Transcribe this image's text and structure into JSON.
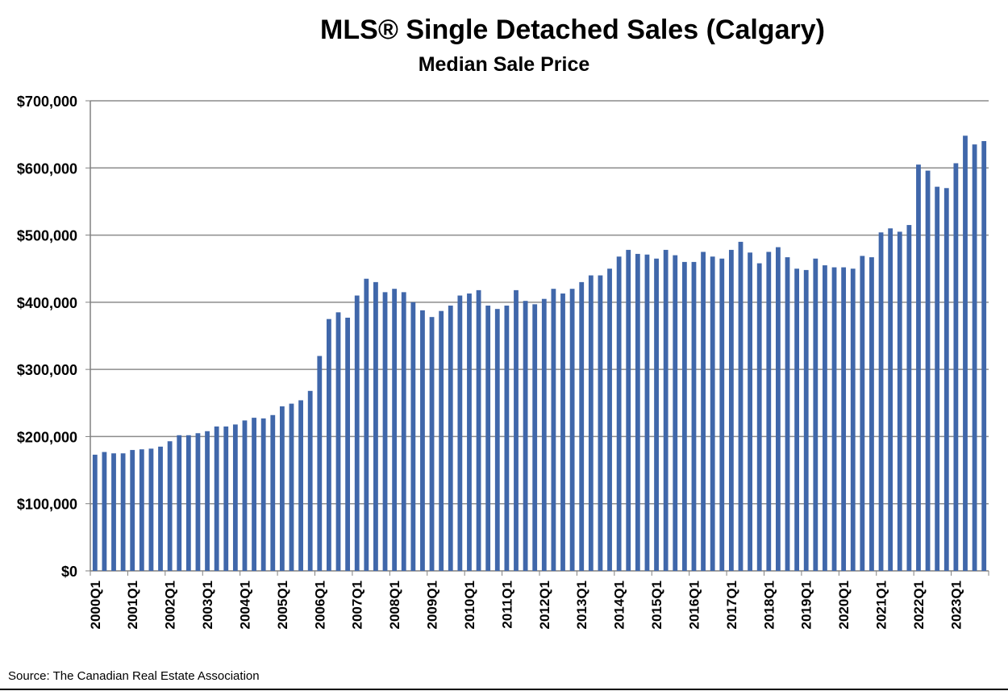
{
  "chart_data": {
    "type": "bar",
    "title": "MLS® Single Detached Sales  (Calgary)",
    "subtitle": "Median Sale Price",
    "xlabel": "",
    "ylabel": "",
    "ylim": [
      0,
      700000
    ],
    "y_ticks": [
      0,
      100000,
      200000,
      300000,
      400000,
      500000,
      600000,
      700000
    ],
    "y_tick_labels": [
      "$0",
      "$100,000",
      "$200,000",
      "$300,000",
      "$400,000",
      "$500,000",
      "$600,000",
      "$700,000"
    ],
    "grid": true,
    "bar_color": "#4067AA",
    "x_tick_labels": [
      "2000Q1",
      "2001Q1",
      "2002Q1",
      "2003Q1",
      "2004Q1",
      "2005Q1",
      "2006Q1",
      "2007Q1",
      "2008Q1",
      "2009Q1",
      "2010Q1",
      "2011Q1",
      "2012Q1",
      "2013Q1",
      "2014Q1",
      "2015Q1",
      "2016Q1",
      "2017Q1",
      "2018Q1",
      "2019Q1",
      "2020Q1",
      "2021Q1",
      "2022Q1",
      "2023Q1"
    ],
    "categories": [
      "2000Q1",
      "2000Q2",
      "2000Q3",
      "2000Q4",
      "2001Q1",
      "2001Q2",
      "2001Q3",
      "2001Q4",
      "2002Q1",
      "2002Q2",
      "2002Q3",
      "2002Q4",
      "2003Q1",
      "2003Q2",
      "2003Q3",
      "2003Q4",
      "2004Q1",
      "2004Q2",
      "2004Q3",
      "2004Q4",
      "2005Q1",
      "2005Q2",
      "2005Q3",
      "2005Q4",
      "2006Q1",
      "2006Q2",
      "2006Q3",
      "2006Q4",
      "2007Q1",
      "2007Q2",
      "2007Q3",
      "2007Q4",
      "2008Q1",
      "2008Q2",
      "2008Q3",
      "2008Q4",
      "2009Q1",
      "2009Q2",
      "2009Q3",
      "2009Q4",
      "2010Q1",
      "2010Q2",
      "2010Q3",
      "2010Q4",
      "2011Q1",
      "2011Q2",
      "2011Q3",
      "2011Q4",
      "2012Q1",
      "2012Q2",
      "2012Q3",
      "2012Q4",
      "2013Q1",
      "2013Q2",
      "2013Q3",
      "2013Q4",
      "2014Q1",
      "2014Q2",
      "2014Q3",
      "2014Q4",
      "2015Q1",
      "2015Q2",
      "2015Q3",
      "2015Q4",
      "2016Q1",
      "2016Q2",
      "2016Q3",
      "2016Q4",
      "2017Q1",
      "2017Q2",
      "2017Q3",
      "2017Q4",
      "2018Q1",
      "2018Q2",
      "2018Q3",
      "2018Q4",
      "2019Q1",
      "2019Q2",
      "2019Q3",
      "2019Q4",
      "2020Q1",
      "2020Q2",
      "2020Q3",
      "2020Q4",
      "2021Q1",
      "2021Q2",
      "2021Q3",
      "2021Q4",
      "2022Q1",
      "2022Q2",
      "2022Q3",
      "2022Q4",
      "2023Q1",
      "2023Q2",
      "2023Q3",
      "2023Q4"
    ],
    "values": [
      173000,
      177000,
      175000,
      175000,
      180000,
      181000,
      182000,
      185000,
      193000,
      202000,
      202000,
      205000,
      208000,
      215000,
      215000,
      218000,
      224000,
      228000,
      227000,
      232000,
      245000,
      249000,
      254000,
      268000,
      320000,
      375000,
      385000,
      377000,
      410000,
      435000,
      430000,
      415000,
      420000,
      415000,
      400000,
      388000,
      378000,
      387000,
      395000,
      410000,
      413000,
      418000,
      395000,
      390000,
      395000,
      418000,
      402000,
      397000,
      405000,
      420000,
      413000,
      420000,
      430000,
      440000,
      440000,
      450000,
      468000,
      478000,
      472000,
      471000,
      465000,
      478000,
      470000,
      460000,
      460000,
      475000,
      468000,
      465000,
      478000,
      490000,
      474000,
      458000,
      475000,
      482000,
      467000,
      450000,
      448000,
      465000,
      455000,
      452000,
      452000,
      450000,
      469000,
      467000,
      504000,
      510000,
      505000,
      515000,
      605000,
      596000,
      572000,
      570000,
      607000,
      648000,
      635000,
      640000
    ]
  },
  "source": "Source: The Canadian Real Estate Association"
}
